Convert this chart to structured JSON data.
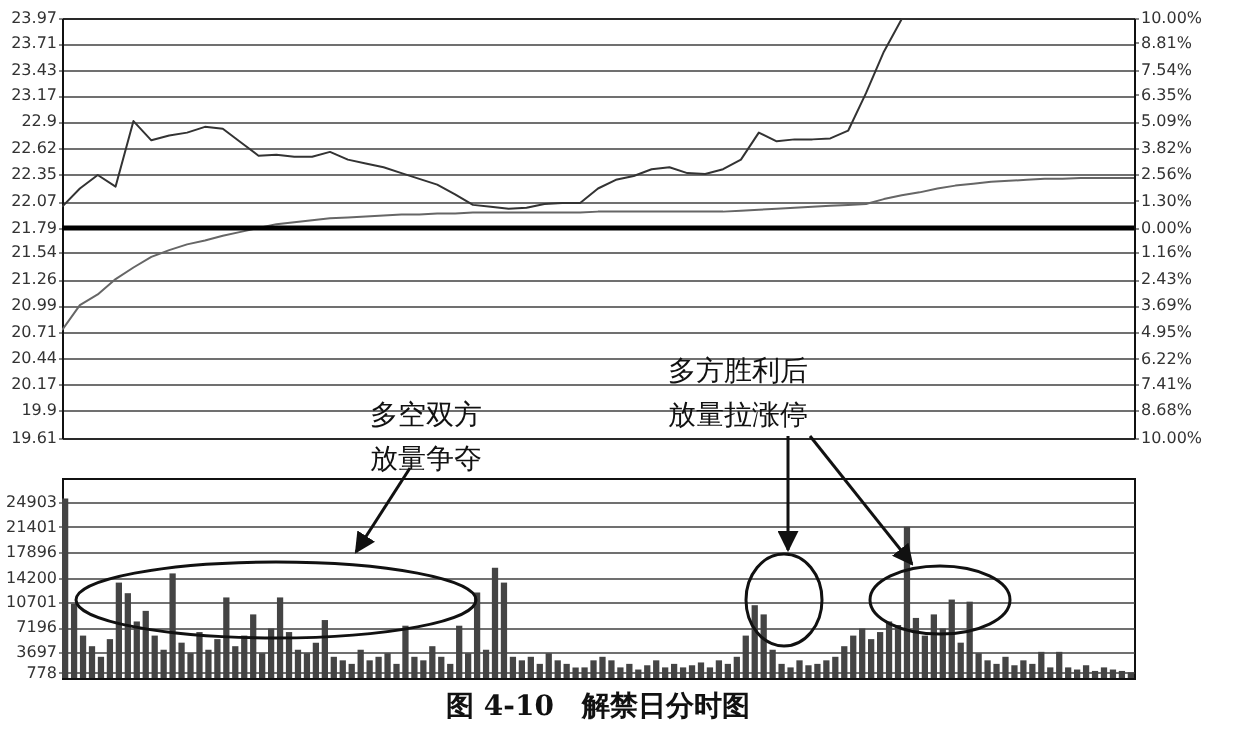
{
  "chart_data": [
    {
      "type": "line",
      "annotations": [
        "多空双方放量争夺",
        "多方胜利后放量拉涨停"
      ],
      "categories": [
        null,
        null,
        null,
        null,
        null,
        null,
        null,
        null,
        null,
        null,
        null,
        null,
        null,
        null,
        null,
        null,
        null,
        null,
        null,
        null,
        null,
        null,
        null,
        null,
        null,
        null,
        null,
        null,
        null,
        null,
        null,
        null,
        null,
        null,
        null,
        null,
        null,
        null,
        null,
        null,
        null,
        null,
        null,
        null,
        null,
        null,
        null,
        null,
        null,
        null,
        null,
        null,
        null,
        null,
        null,
        null,
        null,
        null,
        null,
        null,
        null
      ],
      "ylim": [
        19.61,
        23.97
      ],
      "yticks": [
        19.61,
        19.9,
        20.17,
        20.44,
        20.71,
        20.99,
        21.26,
        21.54,
        21.79,
        22.07,
        22.35,
        22.62,
        22.9,
        23.17,
        23.43,
        23.71,
        23.97
      ],
      "y2lim": [
        -10,
        10
      ],
      "y2ticks": [
        {
          "value": -10,
          "label": "10.00%"
        },
        {
          "value": -8.68,
          "label": "8.68%"
        },
        {
          "value": -7.41,
          "label": "7.41%"
        },
        {
          "value": -6.22,
          "label": "6.22%"
        },
        {
          "value": -4.95,
          "label": "4.95%"
        },
        {
          "value": -3.69,
          "label": "3.69%"
        },
        {
          "value": -2.43,
          "label": "2.43%"
        },
        {
          "value": -1.16,
          "label": "1.16%"
        },
        {
          "value": 0,
          "label": "0.00%"
        },
        {
          "value": 1.3,
          "label": "1.30%"
        },
        {
          "value": 2.56,
          "label": "2.56%"
        },
        {
          "value": 3.82,
          "label": "3.82%"
        },
        {
          "value": 5.09,
          "label": "5.09%"
        },
        {
          "value": 6.35,
          "label": "6.35%"
        },
        {
          "value": 7.54,
          "label": "7.54%"
        },
        {
          "value": 8.81,
          "label": "8.81%"
        },
        {
          "value": 10,
          "label": "10.00%"
        }
      ],
      "grid": "y",
      "tick_labels": "y",
      "ref_lines": [
        {
          "axis": "y",
          "value": 21.79
        }
      ],
      "series": [
        {
          "color": "#333333",
          "values": [
            22.01,
            22.2,
            22.34,
            22.22,
            22.9,
            22.7,
            22.75,
            22.78,
            22.84,
            22.82,
            22.68,
            22.54,
            22.55,
            22.53,
            22.53,
            22.58,
            22.5,
            22.46,
            22.42,
            22.36,
            22.3,
            22.24,
            22.14,
            22.03,
            22.01,
            21.99,
            22.0,
            22.04,
            22.05,
            22.05,
            22.2,
            22.29,
            22.33,
            22.4,
            22.42,
            22.36,
            22.35,
            22.4,
            22.5,
            22.78,
            22.69,
            22.71,
            22.71,
            22.72,
            22.8,
            23.19,
            23.62,
            23.96,
            23.97,
            23.97,
            23.97,
            23.97,
            23.97,
            23.97,
            23.97,
            23.97,
            23.97,
            23.97,
            23.97,
            23.97,
            23.97
          ]
        },
        {
          "color": "#666666",
          "values": [
            20.73,
            20.99,
            21.1,
            21.26,
            21.38,
            21.49,
            21.56,
            21.62,
            21.66,
            21.71,
            21.75,
            21.79,
            21.83,
            21.85,
            21.87,
            21.89,
            21.9,
            21.91,
            21.92,
            21.93,
            21.93,
            21.94,
            21.94,
            21.95,
            21.95,
            21.95,
            21.95,
            21.95,
            21.95,
            21.95,
            21.96,
            21.96,
            21.96,
            21.96,
            21.96,
            21.96,
            21.96,
            21.96,
            21.97,
            21.98,
            21.99,
            22.0,
            22.01,
            22.02,
            22.03,
            22.04,
            22.09,
            22.13,
            22.16,
            22.2,
            22.23,
            22.25,
            22.27,
            22.28,
            22.29,
            22.3,
            22.3,
            22.31,
            22.31,
            22.31,
            22.31
          ]
        }
      ]
    },
    {
      "type": "bar",
      "title": "图 4-10　解禁日分时图",
      "categories": [
        null,
        null,
        null,
        null,
        null,
        null,
        null,
        null,
        null,
        null,
        null,
        null,
        null,
        null,
        null,
        null,
        null,
        null,
        null,
        null,
        null,
        null,
        null,
        null,
        null,
        null,
        null,
        null,
        null,
        null,
        null,
        null,
        null,
        null,
        null,
        null,
        null,
        null,
        null,
        null,
        null,
        null,
        null,
        null,
        null,
        null,
        null,
        null,
        null,
        null,
        null,
        null,
        null,
        null,
        null,
        null,
        null,
        null,
        null,
        null,
        null,
        null,
        null,
        null,
        null,
        null,
        null,
        null,
        null,
        null,
        null,
        null,
        null,
        null,
        null,
        null,
        null,
        null,
        null,
        null,
        null,
        null,
        null,
        null,
        null,
        null,
        null,
        null,
        null,
        null,
        null,
        null,
        null,
        null,
        null,
        null,
        null,
        null,
        null,
        null,
        null,
        null,
        null,
        null,
        null,
        null,
        null,
        null,
        null,
        null,
        null,
        null,
        null,
        null,
        null,
        null,
        null,
        null,
        null,
        null
      ],
      "ylim": [
        0,
        28300
      ],
      "yticks": [
        778,
        3697,
        7196,
        10701,
        14200,
        17896,
        21401,
        24903
      ],
      "grid": "y",
      "tick_labels": "y",
      "series": [
        {
          "color": "#444444",
          "values": [
            25400,
            10500,
            6000,
            4500,
            3000,
            5500,
            13500,
            12000,
            8000,
            9500,
            6000,
            4000,
            14800,
            5000,
            3500,
            6500,
            4000,
            5500,
            11400,
            4500,
            6000,
            9000,
            3500,
            7000,
            11400,
            6500,
            4000,
            3500,
            5000,
            8200,
            3000,
            2500,
            2000,
            4000,
            2500,
            3000,
            3500,
            2000,
            7400,
            3000,
            2500,
            4500,
            3000,
            2000,
            7400,
            3500,
            12100,
            4000,
            15600,
            13500,
            3000,
            2500,
            3000,
            2000,
            3500,
            2500,
            2000,
            1500,
            1500,
            2500,
            3000,
            2500,
            1500,
            2000,
            1200,
            1800,
            2500,
            1500,
            2000,
            1500,
            1800,
            2200,
            1500,
            2500,
            2000,
            3000,
            6000,
            10300,
            9000,
            4000,
            2000,
            1500,
            2500,
            1800,
            2000,
            2500,
            3000,
            4500,
            6000,
            7000,
            5500,
            6500,
            8000,
            7500,
            21400,
            8500,
            6000,
            9000,
            7000,
            11100,
            5000,
            10800,
            3500,
            2500,
            2000,
            3000,
            1800,
            2500,
            2000,
            3700,
            1500,
            3700,
            1500,
            1200,
            1800,
            1000,
            1500,
            1200,
            1000,
            800
          ]
        }
      ]
    }
  ]
}
